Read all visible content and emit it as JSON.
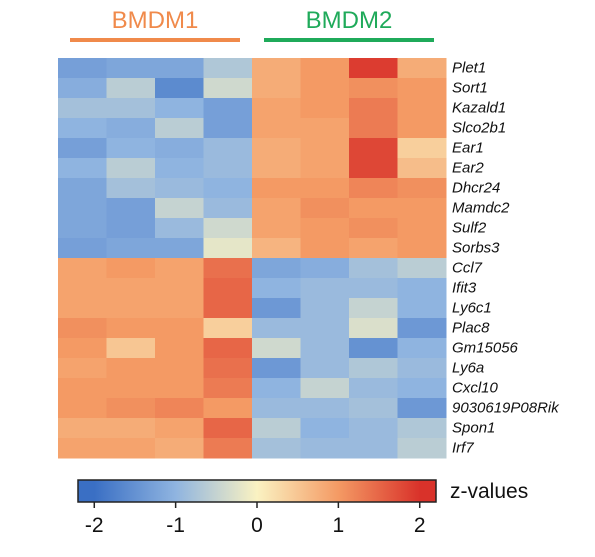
{
  "chart_data": {
    "type": "heatmap",
    "groups": [
      {
        "label": "BMDM1",
        "color": "#f08a4b",
        "columns": 4
      },
      {
        "label": "BMDM2",
        "color": "#1faa5a",
        "columns": 4
      }
    ],
    "rows": [
      "Plet1",
      "Sort1",
      "Kazald1",
      "Slco2b1",
      "Ear1",
      "Ear2",
      "Dhcr24",
      "Mamdc2",
      "Sulf2",
      "Sorbs3",
      "Ccl7",
      "Ifit3",
      "Ly6c1",
      "Plac8",
      "Gm15056",
      "Ly6a",
      "Cxcl10",
      "9030619P08Rik",
      "Spon1",
      "Irf7"
    ],
    "values": [
      [
        -1.3,
        -1.2,
        -1.2,
        -0.7,
        0.8,
        1.0,
        1.9,
        0.8
      ],
      [
        -1.1,
        -0.6,
        -1.6,
        -0.4,
        0.8,
        1.0,
        1.1,
        1.0
      ],
      [
        -0.8,
        -0.8,
        -1.0,
        -1.3,
        0.9,
        1.0,
        1.3,
        1.0
      ],
      [
        -1.0,
        -1.1,
        -0.6,
        -1.3,
        0.9,
        0.9,
        1.3,
        1.0
      ],
      [
        -1.3,
        -1.0,
        -1.1,
        -0.9,
        0.8,
        0.9,
        1.8,
        0.4
      ],
      [
        -1.0,
        -0.6,
        -1.0,
        -0.9,
        0.8,
        0.9,
        1.8,
        0.6
      ],
      [
        -1.2,
        -0.8,
        -0.9,
        -1.0,
        1.0,
        1.0,
        1.2,
        1.1
      ],
      [
        -1.2,
        -1.3,
        -0.5,
        -0.9,
        0.9,
        1.1,
        1.0,
        1.0
      ],
      [
        -1.2,
        -1.3,
        -0.9,
        -0.4,
        0.9,
        1.0,
        1.1,
        1.0
      ],
      [
        -1.3,
        -1.2,
        -1.2,
        -0.2,
        0.7,
        1.0,
        0.9,
        1.0
      ],
      [
        0.9,
        1.0,
        0.9,
        1.4,
        -1.2,
        -1.1,
        -0.8,
        -0.6
      ],
      [
        0.9,
        0.9,
        0.9,
        1.5,
        -1.0,
        -0.9,
        -0.9,
        -1.0
      ],
      [
        0.9,
        0.9,
        0.9,
        1.5,
        -1.4,
        -0.9,
        -0.5,
        -1.0
      ],
      [
        1.1,
        1.0,
        1.0,
        0.4,
        -0.9,
        -0.9,
        -0.3,
        -1.4
      ],
      [
        1.0,
        0.5,
        1.0,
        1.5,
        -0.4,
        -0.9,
        -1.5,
        -1.0
      ],
      [
        0.9,
        1.0,
        1.0,
        1.4,
        -1.4,
        -0.9,
        -0.7,
        -0.9
      ],
      [
        1.0,
        1.0,
        1.0,
        1.3,
        -1.0,
        -0.5,
        -0.9,
        -1.0
      ],
      [
        1.0,
        1.1,
        1.2,
        1.0,
        -0.9,
        -0.9,
        -0.8,
        -1.4
      ],
      [
        0.8,
        0.8,
        0.9,
        1.5,
        -0.6,
        -1.0,
        -0.9,
        -0.7
      ],
      [
        0.9,
        0.9,
        0.8,
        1.3,
        -0.8,
        -0.9,
        -0.9,
        -0.6
      ]
    ],
    "color_scale": {
      "stops": [
        {
          "value": -2,
          "color": "#3a6fc4"
        },
        {
          "value": -1,
          "color": "#8fb4e0"
        },
        {
          "value": 0,
          "color": "#faf2c2"
        },
        {
          "value": 1,
          "color": "#f49a64"
        },
        {
          "value": 2,
          "color": "#d9322a"
        }
      ],
      "range": [
        -2.2,
        2.2
      ],
      "ticks": [
        -2,
        -1,
        0,
        1,
        2
      ],
      "tick_labels": [
        "-2",
        "-1",
        "0",
        "1",
        "2"
      ],
      "title": "z-values"
    }
  }
}
